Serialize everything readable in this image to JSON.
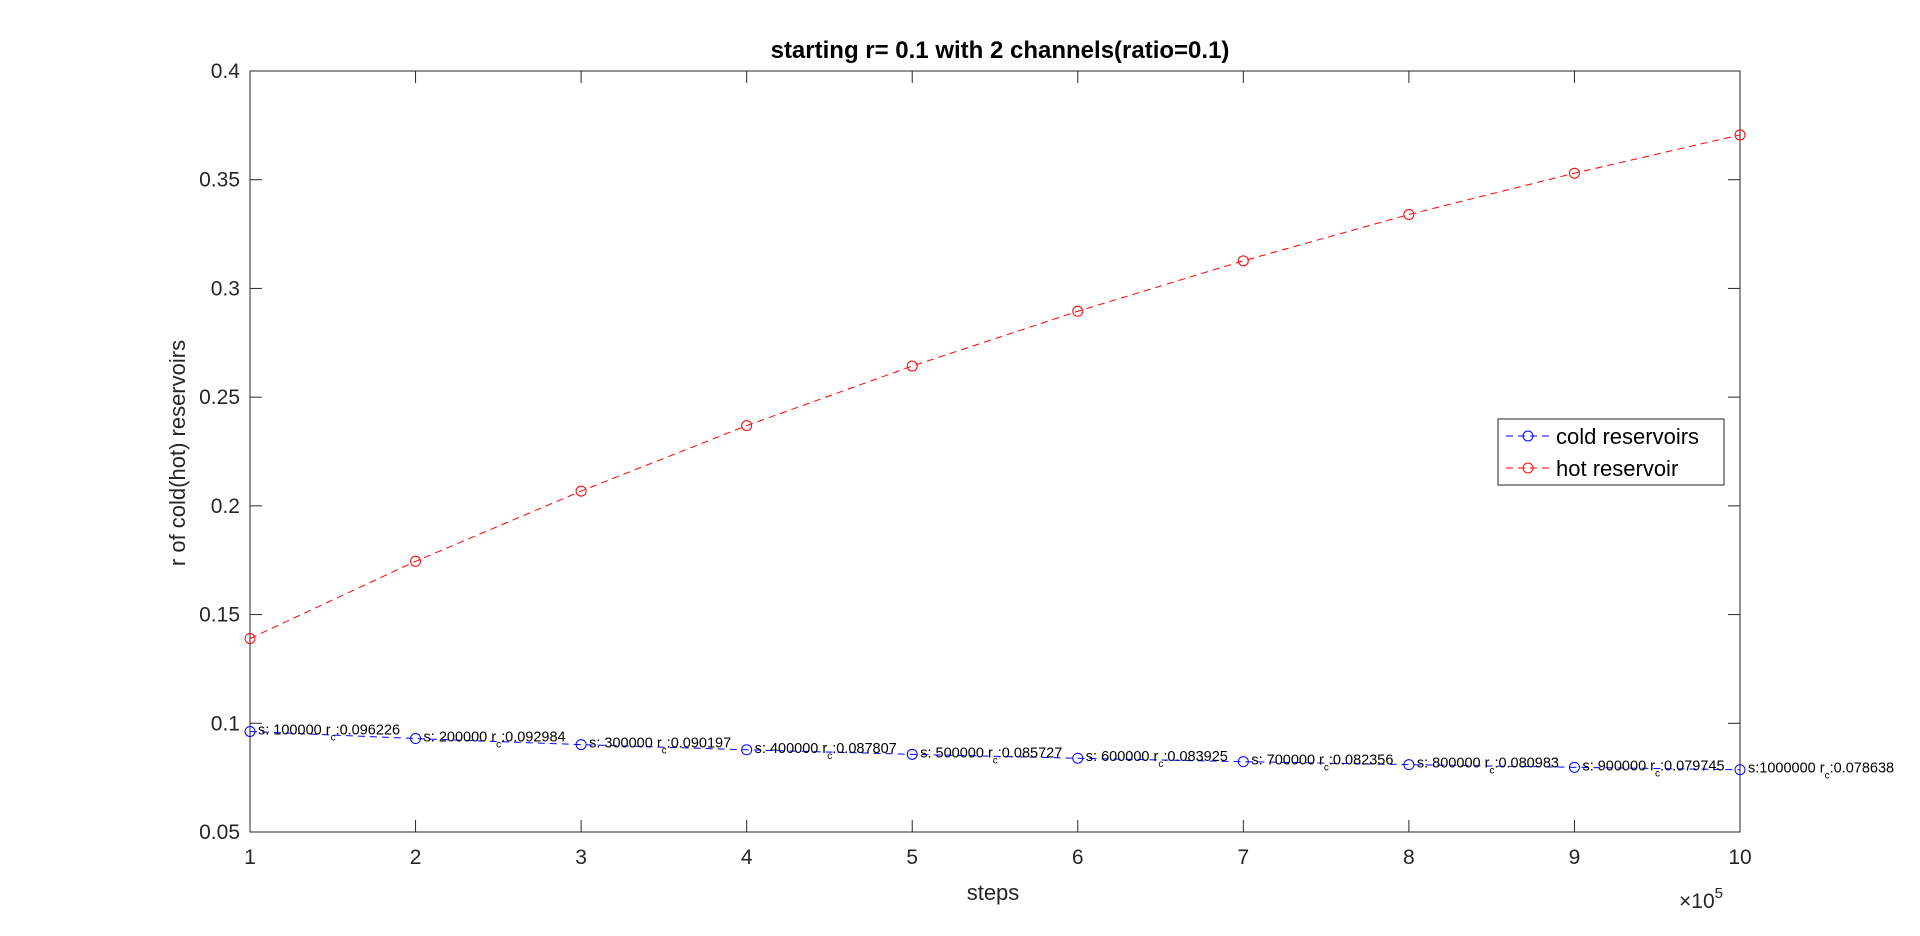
{
  "chart_data": {
    "type": "line",
    "title": "starting r= 0.1 with 2 channels(ratio=0.1)",
    "xlabel": "steps",
    "ylabel": "r of cold(hot) reservoirs",
    "x_exponent_base": "×10",
    "x_exponent": "5",
    "xlim": [
      1,
      10
    ],
    "ylim": [
      0.05,
      0.4
    ],
    "xticks": [
      "1",
      "2",
      "3",
      "4",
      "5",
      "6",
      "7",
      "8",
      "9",
      "10"
    ],
    "yticks": [
      "0.05",
      "0.1",
      "0.15",
      "0.2",
      "0.25",
      "0.3",
      "0.35",
      "0.4"
    ],
    "grid": false,
    "legend_position": "right",
    "x": [
      1,
      2,
      3,
      4,
      5,
      6,
      7,
      8,
      9,
      10
    ],
    "series": [
      {
        "name": "cold reservoirs",
        "color": "#0000ff",
        "values": [
          0.096226,
          0.092984,
          0.090197,
          0.087807,
          0.085727,
          0.083925,
          0.082356,
          0.080983,
          0.079745,
          0.078638
        ],
        "labels": [
          {
            "s": "s: 100000",
            "r": "r",
            "sub": "c",
            "v": ":0.096226"
          },
          {
            "s": "s: 200000",
            "r": "r",
            "sub": "c",
            "v": ":0.092984"
          },
          {
            "s": "s: 300000",
            "r": "r",
            "sub": "c",
            "v": ":0.090197"
          },
          {
            "s": "s: 400000",
            "r": "r",
            "sub": "c",
            "v": ":0.087807"
          },
          {
            "s": "s: 500000",
            "r": "r",
            "sub": "c",
            "v": ":0.085727"
          },
          {
            "s": "s: 600000",
            "r": "r",
            "sub": "c",
            "v": ":0.083925"
          },
          {
            "s": "s: 700000",
            "r": "r",
            "sub": "c",
            "v": ":0.082356"
          },
          {
            "s": "s: 800000",
            "r": "r",
            "sub": "c",
            "v": ":0.080983"
          },
          {
            "s": "s: 900000",
            "r": "r",
            "sub": "c",
            "v": ":0.079745"
          },
          {
            "s": "s:1000000",
            "r": "r",
            "sub": "c",
            "v": ":0.078638"
          }
        ]
      },
      {
        "name": "hot reservoir",
        "color": "#ff0000",
        "values": [
          0.139,
          0.1745,
          0.2068,
          0.2369,
          0.2643,
          0.2895,
          0.3127,
          0.334,
          0.353,
          0.3706
        ]
      }
    ]
  }
}
